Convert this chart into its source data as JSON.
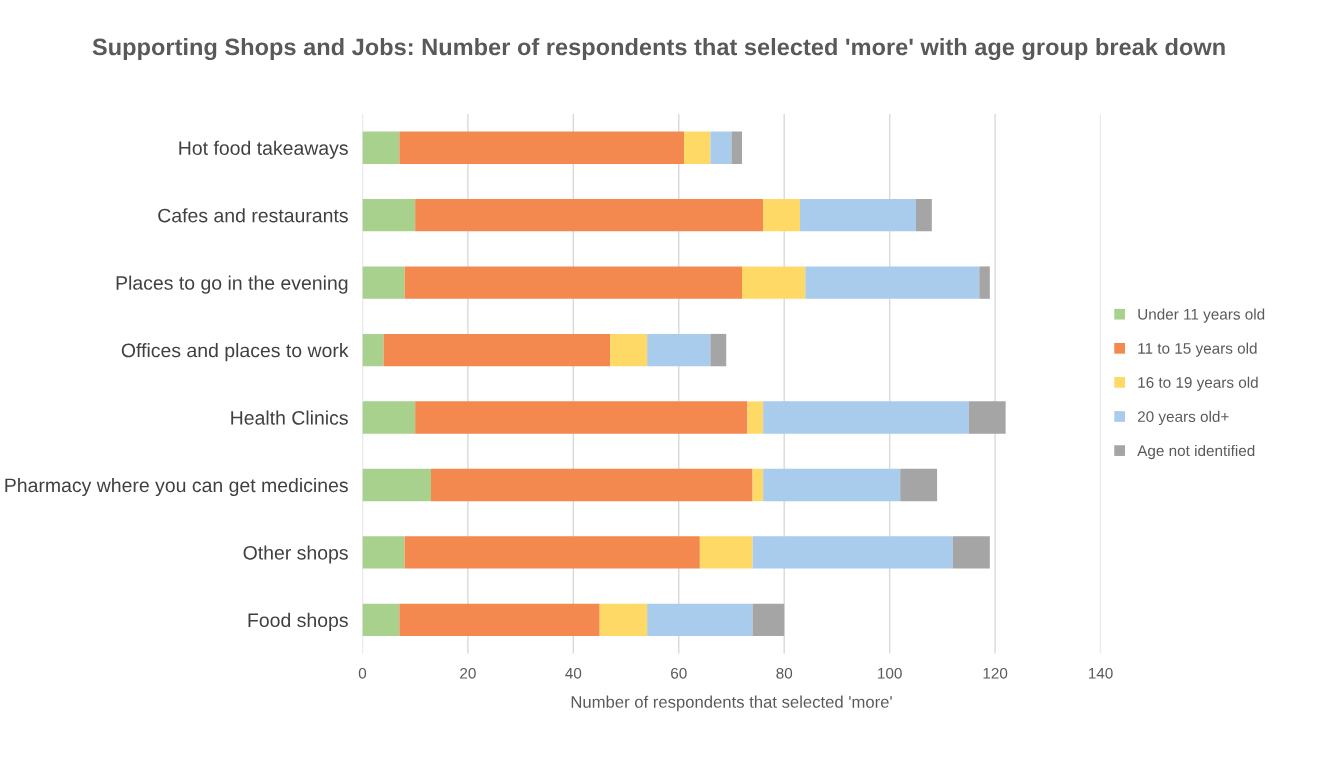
{
  "chart_data": {
    "type": "bar",
    "orientation": "horizontal",
    "stacked": true,
    "title": "Supporting Shops and Jobs: Number of respondents that selected 'more' with age group break down",
    "xlabel": "Number of respondents that selected 'more'",
    "categories": [
      "Hot food takeaways",
      "Cafes and restaurants",
      "Places to go in the evening",
      "Offices and places to work",
      "Health Clinics",
      "Pharmacy where you can get medicines",
      "Other shops",
      "Food shops"
    ],
    "series": [
      {
        "name": "Under 11 years old",
        "color": "#a9d18e",
        "values": [
          7,
          10,
          8,
          4,
          10,
          13,
          8,
          7
        ]
      },
      {
        "name": "11 to 15 years old",
        "color": "#f4894f",
        "values": [
          54,
          66,
          64,
          43,
          63,
          61,
          56,
          38
        ]
      },
      {
        "name": "16 to 19 years old",
        "color": "#ffd966",
        "values": [
          5,
          7,
          12,
          7,
          3,
          2,
          10,
          9
        ]
      },
      {
        "name": "20 years old+",
        "color": "#a9cbec",
        "values": [
          4,
          22,
          33,
          12,
          39,
          26,
          38,
          20
        ]
      },
      {
        "name": "Age not identified",
        "color": "#a5a5a5",
        "values": [
          2,
          3,
          2,
          3,
          7,
          7,
          7,
          6
        ]
      }
    ],
    "xlim": [
      0,
      140
    ],
    "xticks": [
      0,
      20,
      40,
      60,
      80,
      100,
      120,
      140
    ],
    "grid": "x",
    "legend": "right"
  }
}
